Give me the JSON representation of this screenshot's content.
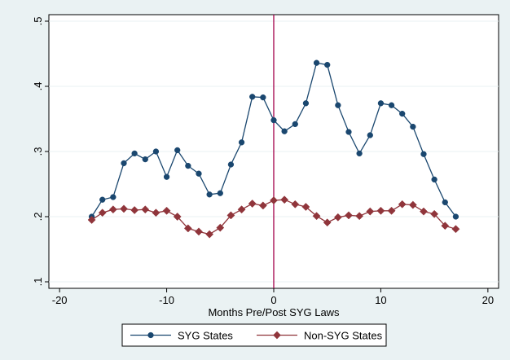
{
  "chart_data": {
    "type": "line",
    "xlabel": "Months Pre/Post SYG Laws",
    "ylabel": "",
    "xlim": [
      -21,
      21
    ],
    "ylim": [
      0.09,
      0.51
    ],
    "x_ticks": [
      -20,
      -10,
      0,
      10,
      20
    ],
    "x_tick_labels": [
      "-20",
      "-10",
      "0",
      "10",
      "20"
    ],
    "y_ticks": [
      0.1,
      0.2,
      0.3,
      0.4,
      0.5
    ],
    "y_tick_labels": [
      ".1",
      ".2",
      ".3",
      ".4",
      ".5"
    ],
    "grid": "horizontal",
    "reference_line": {
      "x": 0,
      "color": "#a3004a"
    },
    "legend_position": "bottom",
    "x": [
      -17,
      -16,
      -15,
      -14,
      -13,
      -12,
      -11,
      -10,
      -9,
      -8,
      -7,
      -6,
      -5,
      -4,
      -3,
      -2,
      -1,
      0,
      1,
      2,
      3,
      4,
      5,
      6,
      7,
      8,
      9,
      10,
      11,
      12,
      13,
      14,
      15,
      16,
      17
    ],
    "series": [
      {
        "name": "SYG States",
        "color": "#1a476f",
        "marker": "circle",
        "values": [
          0.2,
          0.226,
          0.23,
          0.282,
          0.297,
          0.288,
          0.3,
          0.261,
          0.302,
          0.278,
          0.266,
          0.234,
          0.236,
          0.28,
          0.314,
          0.384,
          0.383,
          0.348,
          0.331,
          0.342,
          0.374,
          0.436,
          0.433,
          0.371,
          0.33,
          0.297,
          0.325,
          0.374,
          0.371,
          0.358,
          0.338,
          0.296,
          0.257,
          0.222,
          0.2
        ]
      },
      {
        "name": "Non-SYG States",
        "color": "#90353b",
        "marker": "diamond",
        "values": [
          0.195,
          0.206,
          0.211,
          0.212,
          0.21,
          0.211,
          0.206,
          0.209,
          0.2,
          0.182,
          0.177,
          0.173,
          0.183,
          0.202,
          0.211,
          0.22,
          0.217,
          0.225,
          0.226,
          0.219,
          0.215,
          0.201,
          0.191,
          0.199,
          0.202,
          0.201,
          0.208,
          0.209,
          0.209,
          0.219,
          0.218,
          0.208,
          0.204,
          0.186,
          0.181
        ]
      }
    ]
  }
}
